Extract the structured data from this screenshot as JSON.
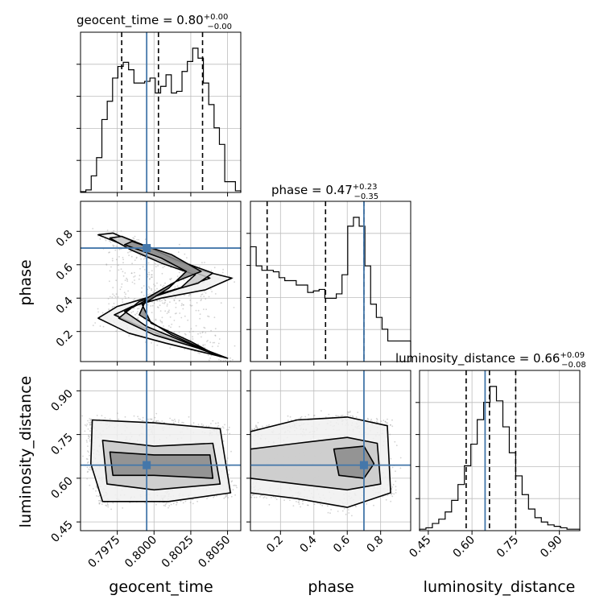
{
  "chart_data": {
    "type": "corner",
    "parameters": [
      "geocent_time",
      "phase",
      "luminosity_distance"
    ],
    "axis_labels": [
      "geocent_time",
      "phase",
      "luminosity_distance"
    ],
    "ranges": [
      [
        0.795,
        0.8059
      ],
      [
        0.02,
        0.98
      ],
      [
        0.42,
        0.97
      ]
    ],
    "truths": [
      0.7995,
      0.7,
      0.645
    ],
    "titles": [
      {
        "param": "geocent_time",
        "prefix": "geocent_time = ",
        "value": "0.80",
        "plus": "+0.00",
        "minus": "−0.00"
      },
      {
        "param": "phase",
        "prefix": "phase = ",
        "value": "0.47",
        "plus": "+0.23",
        "minus": "−0.35"
      },
      {
        "param": "luminosity_distance",
        "prefix": "luminosity_distance = ",
        "value": "0.66",
        "plus": "+0.09",
        "minus": "−0.08"
      }
    ],
    "ticks": {
      "geocent_time": {
        "values": [
          0.7975,
          0.8,
          0.8025,
          0.805
        ],
        "labels": [
          "0.7975",
          "0.8000",
          "0.8025",
          "0.8050"
        ]
      },
      "phase": {
        "values": [
          0.2,
          0.4,
          0.6,
          0.8
        ],
        "labels": [
          "0.2",
          "0.4",
          "0.6",
          "0.8"
        ]
      },
      "luminosity_distance": {
        "values": [
          0.45,
          0.6,
          0.75,
          0.9
        ],
        "labels": [
          "0.45",
          "0.60",
          "0.75",
          "0.90"
        ]
      }
    },
    "histograms": [
      {
        "param": "geocent_time",
        "range": [
          0.795,
          0.8059
        ],
        "counts": [
          0.5,
          1.5,
          10.0,
          21.0,
          44.0,
          55.0,
          69.0,
          76.0,
          78.5,
          74.0,
          66.0,
          66.0,
          67.0,
          69.0,
          60.0,
          64.0,
          71.0,
          60.0,
          61.0,
          73.0,
          79.0,
          87.0,
          81.0,
          66.0,
          53.0,
          39.0,
          29.0,
          6.5,
          6.5,
          1.0
        ],
        "quantiles": [
          0.7978,
          0.8003,
          0.8033
        ]
      },
      {
        "param": "phase",
        "range": [
          0.02,
          0.98
        ],
        "counts": [
          78.0,
          65.0,
          62.0,
          62.0,
          61.0,
          57.0,
          55.0,
          55.0,
          52.0,
          52.0,
          47.0,
          48.0,
          49.0,
          43.0,
          43.0,
          46.0,
          59.0,
          92.0,
          98.0,
          92.0,
          65.0,
          39.0,
          30.0,
          22.0,
          14.0,
          14.0,
          14.0,
          14.0
        ],
        "quantiles": [
          0.12,
          0.47,
          0.7
        ]
      },
      {
        "param": "luminosity_distance",
        "range": [
          0.42,
          0.97
        ],
        "counts": [
          1.0,
          2.0,
          5.0,
          8.0,
          13.0,
          21.0,
          32.0,
          45.0,
          60.0,
          77.0,
          89.0,
          100.0,
          90.0,
          72.0,
          54.0,
          38.0,
          25.0,
          15.0,
          9.0,
          6.0,
          4.0,
          3.0,
          2.0,
          1.0,
          1.0
        ],
        "quantiles": [
          0.58,
          0.66,
          0.75
        ]
      }
    ],
    "contours_2d": [
      {
        "x": "geocent_time",
        "y": "phase",
        "description": "S-shaped band",
        "levels": [
          [
            [
              0.7972,
              0.79
            ],
            [
              0.7985,
              0.74
            ],
            [
              0.8003,
              0.66
            ],
            [
              0.803,
              0.57
            ],
            [
              0.8053,
              0.52
            ],
            [
              0.8035,
              0.45
            ],
            [
              0.8005,
              0.4
            ],
            [
              0.7985,
              0.35
            ],
            [
              0.7973,
              0.3
            ],
            [
              0.7988,
              0.24
            ],
            [
              0.801,
              0.16
            ],
            [
              0.8035,
              0.09
            ],
            [
              0.805,
              0.04
            ],
            [
              0.8036,
              0.07
            ],
            [
              0.8008,
              0.13
            ],
            [
              0.7983,
              0.19
            ],
            [
              0.7962,
              0.28
            ],
            [
              0.7975,
              0.35
            ],
            [
              0.7998,
              0.41
            ],
            [
              0.8025,
              0.48
            ],
            [
              0.8038,
              0.52
            ],
            [
              0.802,
              0.58
            ],
            [
              0.7996,
              0.65
            ],
            [
              0.7976,
              0.73
            ],
            [
              0.7962,
              0.78
            ]
          ],
          [
            [
              0.7978,
              0.77
            ],
            [
              0.7995,
              0.71
            ],
            [
              0.8015,
              0.63
            ],
            [
              0.804,
              0.55
            ],
            [
              0.803,
              0.49
            ],
            [
              0.8002,
              0.42
            ],
            [
              0.798,
              0.32
            ],
            [
              0.7995,
              0.23
            ],
            [
              0.802,
              0.14
            ],
            [
              0.8045,
              0.05
            ],
            [
              0.803,
              0.1
            ],
            [
              0.8,
              0.18
            ],
            [
              0.7976,
              0.28
            ],
            [
              0.799,
              0.38
            ],
            [
              0.8018,
              0.46
            ],
            [
              0.8028,
              0.54
            ],
            [
              0.8005,
              0.61
            ],
            [
              0.7984,
              0.69
            ],
            [
              0.797,
              0.76
            ]
          ],
          [
            [
              0.7985,
              0.74
            ],
            [
              0.8012,
              0.66
            ],
            [
              0.8032,
              0.56
            ],
            [
              0.8015,
              0.5
            ],
            [
              0.7995,
              0.4
            ],
            [
              0.799,
              0.3
            ],
            [
              0.8012,
              0.18
            ],
            [
              0.8042,
              0.06
            ],
            [
              0.8025,
              0.14
            ],
            [
              0.7998,
              0.25
            ],
            [
              0.7992,
              0.36
            ],
            [
              0.801,
              0.46
            ],
            [
              0.8022,
              0.56
            ],
            [
              0.8005,
              0.64
            ],
            [
              0.798,
              0.72
            ]
          ]
        ]
      },
      {
        "x": "geocent_time",
        "y": "luminosity_distance",
        "description": "horizontal band",
        "levels": [
          [
            [
              0.7958,
              0.8
            ],
            [
              0.8,
              0.79
            ],
            [
              0.8045,
              0.77
            ],
            [
              0.8052,
              0.55
            ],
            [
              0.801,
              0.52
            ],
            [
              0.7965,
              0.52
            ],
            [
              0.7957,
              0.65
            ]
          ],
          [
            [
              0.7965,
              0.73
            ],
            [
              0.8,
              0.71
            ],
            [
              0.804,
              0.72
            ],
            [
              0.8045,
              0.58
            ],
            [
              0.8,
              0.56
            ],
            [
              0.7968,
              0.58
            ]
          ],
          [
            [
              0.797,
              0.69
            ],
            [
              0.8,
              0.68
            ],
            [
              0.8038,
              0.68
            ],
            [
              0.804,
              0.6
            ],
            [
              0.8,
              0.61
            ],
            [
              0.7972,
              0.61
            ]
          ]
        ]
      },
      {
        "x": "phase",
        "y": "luminosity_distance",
        "description": "horizontal band",
        "levels": [
          [
            [
              0.02,
              0.76
            ],
            [
              0.3,
              0.8
            ],
            [
              0.6,
              0.81
            ],
            [
              0.84,
              0.78
            ],
            [
              0.86,
              0.55
            ],
            [
              0.6,
              0.5
            ],
            [
              0.3,
              0.53
            ],
            [
              0.02,
              0.55
            ]
          ],
          [
            [
              0.02,
              0.7
            ],
            [
              0.3,
              0.72
            ],
            [
              0.6,
              0.74
            ],
            [
              0.78,
              0.72
            ],
            [
              0.8,
              0.58
            ],
            [
              0.6,
              0.56
            ],
            [
              0.3,
              0.58
            ],
            [
              0.02,
              0.6
            ]
          ],
          [
            [
              0.52,
              0.7
            ],
            [
              0.7,
              0.71
            ],
            [
              0.76,
              0.65
            ],
            [
              0.7,
              0.6
            ],
            [
              0.55,
              0.61
            ]
          ]
        ]
      }
    ]
  }
}
